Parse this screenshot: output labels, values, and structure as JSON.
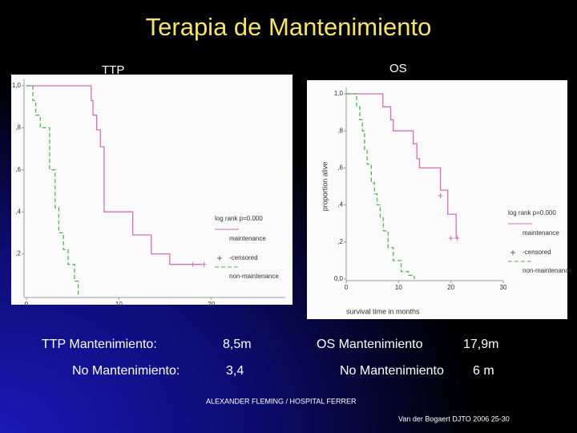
{
  "title": "Terapia de Mantenimiento",
  "chart_data": [
    {
      "type": "line",
      "step": true,
      "title": "TTP",
      "xlim": [
        0,
        28
      ],
      "xticks": [
        0,
        10,
        20
      ],
      "ylim": [
        0,
        1
      ],
      "yticks": [
        {
          "value": 0.2,
          "label": ",2"
        },
        {
          "value": 0.4,
          "label": ",4"
        },
        {
          "value": 0.6,
          "label": ",6"
        },
        {
          "value": 0.8,
          "label": ",8"
        },
        {
          "value": 1.0,
          "label": "1,0"
        }
      ],
      "annotation": "log rank p=0.000",
      "censored_label": "-censored",
      "series": [
        {
          "name": "maintenance",
          "color": "#d070b8",
          "dashed": false,
          "x": [
            0,
            7,
            7.2,
            7.6,
            8,
            8.4,
            11.5,
            13.5,
            15.5,
            19
          ],
          "values": [
            1.0,
            0.93,
            0.86,
            0.79,
            0.71,
            0.4,
            0.29,
            0.2,
            0.15,
            0.15
          ],
          "censored_x": [
            18,
            19.2
          ],
          "censored_values": [
            0.15,
            0.15
          ]
        },
        {
          "name": "non-maintenance",
          "color": "#58b058",
          "dashed": true,
          "x": [
            0,
            0.7,
            1,
            1.5,
            2.5,
            3.1,
            3.5,
            4,
            4.5,
            5.2,
            5.6
          ],
          "values": [
            1.0,
            0.93,
            0.86,
            0.8,
            0.6,
            0.42,
            0.3,
            0.22,
            0.15,
            0.07,
            0
          ],
          "censored_x": [],
          "censored_values": []
        }
      ]
    },
    {
      "type": "line",
      "step": true,
      "title": "OS",
      "xlabel": "survival time in months",
      "ylabel": "proportion alive",
      "xlim": [
        0,
        30
      ],
      "xticks": [
        0,
        10,
        20,
        30
      ],
      "ylim": [
        0,
        1
      ],
      "yticks": [
        {
          "value": 0,
          "label": "0,0"
        },
        {
          "value": 0.2,
          "label": ",2"
        },
        {
          "value": 0.4,
          "label": ",4"
        },
        {
          "value": 0.6,
          "label": ",6"
        },
        {
          "value": 0.8,
          "label": ",8"
        },
        {
          "value": 1.0,
          "label": "1,0"
        }
      ],
      "annotation": "log rank p=0.000",
      "censored_label": "-censored",
      "series": [
        {
          "name": "maintenance",
          "color": "#d070b8",
          "dashed": false,
          "x": [
            0,
            7,
            8.5,
            9,
            12.8,
            13.5,
            14,
            18,
            19.4,
            21
          ],
          "values": [
            1.0,
            0.93,
            0.86,
            0.8,
            0.73,
            0.65,
            0.6,
            0.48,
            0.35,
            0.22
          ],
          "censored_x": [
            18,
            20,
            21.2
          ],
          "censored_values": [
            0.45,
            0.22,
            0.22
          ]
        },
        {
          "name": "non-maintenance",
          "color": "#58b058",
          "dashed": true,
          "x": [
            0,
            2,
            2.6,
            3.1,
            3.5,
            4,
            4.8,
            5.4,
            5.9,
            6.5,
            7.1,
            8,
            9,
            10.5,
            11.9,
            13
          ],
          "values": [
            1.0,
            0.93,
            0.86,
            0.8,
            0.7,
            0.62,
            0.52,
            0.46,
            0.4,
            0.33,
            0.26,
            0.17,
            0.1,
            0.04,
            0.02,
            0
          ],
          "censored_x": [],
          "censored_values": []
        }
      ]
    }
  ],
  "results": [
    {
      "label": "TTP Mantenimiento:",
      "value": "8,5m"
    },
    {
      "label": "No Mantenimiento:",
      "value": "3,4"
    },
    {
      "label": "OS Mantenimiento",
      "value": "17,9m"
    },
    {
      "label": "No Mantenimiento",
      "value": "6 m"
    }
  ],
  "institution": "ALEXANDER FLEMING / HOSPITAL FERRER",
  "reference": "Van der Bogaert DJTO  2006  25-30"
}
